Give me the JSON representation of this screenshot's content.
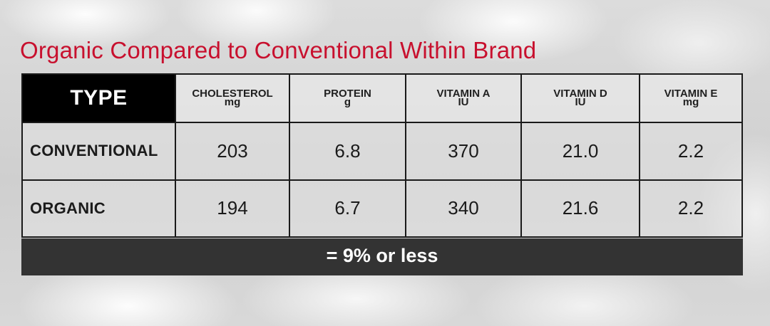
{
  "title": "Organic Compared to Conventional Within Brand",
  "footer": "= 9% or less",
  "colors": {
    "title": "#c8102e",
    "header_bg": "#000000",
    "footer_bg": "#333333"
  },
  "chart_data": {
    "type": "table",
    "title": "Organic Compared to Conventional Within Brand",
    "header": {
      "type_label": "TYPE",
      "columns": [
        {
          "name": "CHOLESTEROL",
          "unit": "mg"
        },
        {
          "name": "PROTEIN",
          "unit": "g"
        },
        {
          "name": "VITAMIN A",
          "unit": "IU"
        },
        {
          "name": "VITAMIN D",
          "unit": "IU"
        },
        {
          "name": "VITAMIN E",
          "unit": "mg"
        }
      ]
    },
    "rows": [
      {
        "label": "CONVENTIONAL",
        "values": [
          "203",
          "6.8",
          "370",
          "21.0",
          "2.2"
        ]
      },
      {
        "label": "ORGANIC",
        "values": [
          "194",
          "6.7",
          "340",
          "21.6",
          "2.2"
        ]
      }
    ],
    "note": "= 9% or less"
  }
}
